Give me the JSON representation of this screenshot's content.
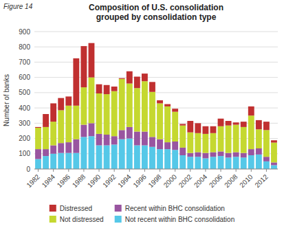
{
  "chart_data": {
    "type": "bar",
    "stacked": true,
    "title": "Composition of U.S. consolidation\ngrouped by consolidation type",
    "annotations": [
      {
        "text": "Figure 14"
      }
    ],
    "y_label": "Number of banks",
    "categories": [
      "1982",
      null,
      "1984",
      null,
      "1986",
      null,
      "1988",
      null,
      "1990",
      null,
      "1992",
      null,
      "1994",
      null,
      "1996",
      null,
      "1998",
      null,
      "2000",
      null,
      "2002",
      null,
      "2004",
      null,
      "2006",
      null,
      "2008",
      null,
      "2010",
      null,
      "2012",
      null
    ],
    "series": [
      {
        "name": "Not recent within BHC consolidation",
        "color": "#55c8e8",
        "values": [
          65,
          85,
          100,
          105,
          105,
          105,
          210,
          215,
          155,
          155,
          160,
          195,
          200,
          155,
          155,
          145,
          130,
          130,
          125,
          90,
          80,
          80,
          70,
          80,
          85,
          75,
          80,
          75,
          90,
          95,
          50,
          25
        ]
      },
      {
        "name": "Recent within BHC consolidation",
        "color": "#9955a0",
        "values": [
          65,
          45,
          55,
          65,
          70,
          90,
          80,
          85,
          75,
          70,
          55,
          60,
          75,
          90,
          90,
          65,
          65,
          45,
          55,
          50,
          25,
          30,
          35,
          30,
          30,
          30,
          30,
          30,
          40,
          40,
          30,
          18
        ]
      },
      {
        "name": "Not distressed",
        "color": "#c5d830",
        "values": [
          140,
          145,
          155,
          215,
          240,
          220,
          245,
          300,
          265,
          265,
          295,
          335,
          285,
          285,
          330,
          295,
          235,
          235,
          195,
          145,
          135,
          125,
          125,
          125,
          165,
          180,
          180,
          170,
          220,
          125,
          175,
          130
        ]
      },
      {
        "name": "Distressed",
        "color": "#c03030",
        "values": [
          5,
          85,
          120,
          80,
          60,
          310,
          270,
          225,
          60,
          60,
          30,
          5,
          80,
          75,
          50,
          65,
          20,
          15,
          20,
          10,
          75,
          65,
          50,
          45,
          50,
          30,
          15,
          35,
          60,
          60,
          55,
          15
        ]
      }
    ],
    "ylim": [
      0,
      900
    ],
    "yticks": [
      0,
      100,
      200,
      300,
      400,
      500,
      600,
      700,
      800,
      900
    ],
    "grid": true,
    "legend": "bottom"
  }
}
